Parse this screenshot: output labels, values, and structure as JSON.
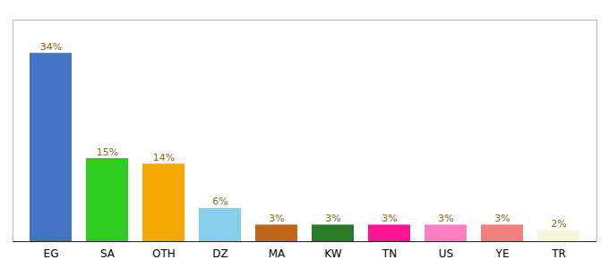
{
  "chart_data": {
    "type": "bar",
    "categories": [
      "EG",
      "SA",
      "OTH",
      "DZ",
      "MA",
      "KW",
      "TN",
      "US",
      "YE",
      "TR"
    ],
    "values": [
      34,
      15,
      14,
      6,
      3,
      3,
      3,
      3,
      3,
      2
    ],
    "value_labels": [
      "34%",
      "15%",
      "14%",
      "6%",
      "3%",
      "3%",
      "3%",
      "3%",
      "3%",
      "2%"
    ],
    "data_labels": true,
    "colors": [
      "#4472c4",
      "#2ecc1f",
      "#f5a800",
      "#87ceeb",
      "#c0651a",
      "#2a7a2a",
      "#ff1493",
      "#ff80c0",
      "#f08080",
      "#f5f5dc"
    ],
    "ylim": [
      0,
      40
    ],
    "grid": false,
    "tick_labels": "x"
  }
}
